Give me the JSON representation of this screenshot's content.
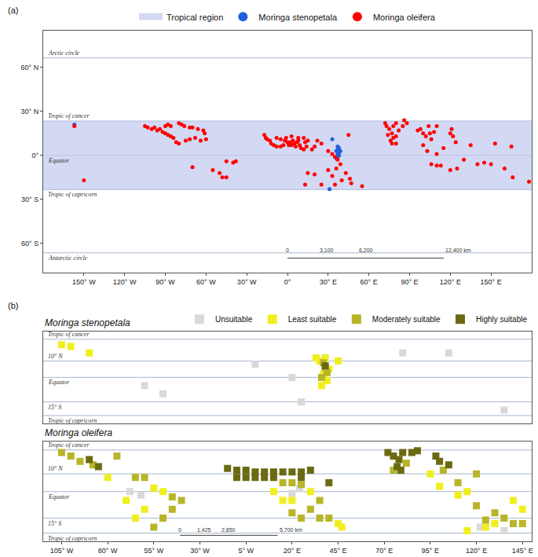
{
  "chart_data": [
    {
      "panel": "(a)",
      "type": "scatter",
      "marker": "circle",
      "xlim": [
        -180,
        180
      ],
      "ylim": [
        -80,
        85
      ],
      "xticks": [
        {
          "value": -150,
          "label": "150° W"
        },
        {
          "value": -120,
          "label": "120° W"
        },
        {
          "value": -90,
          "label": "90° W"
        },
        {
          "value": -60,
          "label": "60° W"
        },
        {
          "value": -30,
          "label": "30° W"
        },
        {
          "value": 0,
          "label": "0°"
        },
        {
          "value": 30,
          "label": "30° E"
        },
        {
          "value": 60,
          "label": "60° E"
        },
        {
          "value": 90,
          "label": "90° E"
        },
        {
          "value": 120,
          "label": "120° E"
        },
        {
          "value": 150,
          "label": "150° E"
        }
      ],
      "yticks": [
        {
          "value": 60,
          "label": "60° N"
        },
        {
          "value": 30,
          "label": "30° N"
        },
        {
          "value": 0,
          "label": "0°"
        },
        {
          "value": -30,
          "label": "30° S"
        },
        {
          "value": -60,
          "label": "60° S"
        }
      ],
      "legend": "top",
      "region": {
        "name": "Tropical region",
        "color": "#c5cbf0",
        "ylim": [
          -23.4,
          23.4
        ]
      },
      "lines": [
        {
          "label": "Arctic circle",
          "value": 66.5
        },
        {
          "label": "Tropic of cancer",
          "value": 23.4
        },
        {
          "label": "Equator",
          "value": 0
        },
        {
          "label": "Tropic of capricorn",
          "value": -23.4
        },
        {
          "label": "Antarctic circle",
          "value": -66.5
        }
      ],
      "scale_bar": [
        "0",
        "3,100",
        "6,200",
        "12,400 km"
      ],
      "series": [
        {
          "name": "Moringa stenopetala",
          "color": "#1f5fe0",
          "x": [
            37,
            38,
            37,
            38,
            37,
            37,
            36,
            38,
            39,
            36,
            33,
            31,
            -157
          ],
          "y": [
            6,
            5,
            4,
            2,
            1,
            -1,
            -2,
            0,
            3,
            3,
            11,
            -23,
            21
          ]
        },
        {
          "name": "Moringa oleifera",
          "color": "#ff0000",
          "x": [
            -105,
            -103,
            -100,
            -98,
            -96,
            -94,
            -92,
            -90,
            -88,
            -86,
            -84,
            -90,
            -88,
            -86,
            -80,
            -78,
            -76,
            -72,
            -70,
            -66,
            -62,
            -61,
            -68,
            -72,
            -75,
            -80,
            -82,
            -64,
            -60,
            -157,
            -150,
            -45,
            -40,
            -38,
            -70,
            -55,
            -50,
            -48,
            -45,
            -17,
            -16,
            -15,
            -13,
            -12,
            -10,
            -8,
            -5,
            -3,
            -2,
            0,
            1,
            2,
            3,
            4,
            5,
            6,
            7,
            8,
            9,
            10,
            12,
            13,
            15,
            14,
            18,
            20,
            22,
            25,
            -1,
            3,
            8,
            12,
            -5,
            -8,
            30,
            33,
            35,
            37,
            39,
            36,
            33,
            30,
            20,
            15,
            25,
            13,
            35,
            40,
            46,
            47,
            55,
            43,
            45,
            73,
            75,
            77,
            78,
            76,
            80,
            78,
            80,
            85,
            72,
            74,
            77,
            80,
            82,
            88,
            86,
            96,
            98,
            100,
            102,
            105,
            106,
            104,
            108,
            110,
            100,
            103,
            110,
            115,
            120,
            122,
            124,
            121,
            113,
            110,
            106,
            120,
            125,
            130,
            140,
            145,
            150,
            160,
            166,
            178,
            153,
            165,
            135
          ],
          "y": [
            20,
            19,
            18,
            19,
            17,
            18,
            16,
            15,
            14,
            13,
            12,
            20,
            21,
            20,
            22,
            21,
            20,
            19,
            19,
            18,
            17,
            15,
            12,
            11,
            10,
            8,
            9,
            10,
            11,
            20,
            -17,
            -4,
            -5,
            -4,
            -8,
            -10,
            -12,
            -15,
            -15,
            14,
            12,
            11,
            10,
            8,
            7,
            6,
            6,
            7,
            10,
            9,
            7,
            9,
            7,
            10,
            8,
            6,
            9,
            10,
            7,
            5,
            4,
            9,
            10,
            6,
            4,
            6,
            10,
            8,
            12,
            13,
            12,
            12,
            11,
            12,
            3,
            1,
            -1,
            -3,
            -6,
            -9,
            -14,
            -10,
            -13,
            -12,
            -20,
            -20,
            -20,
            -17,
            -16,
            -19,
            -21,
            -12,
            14,
            20,
            18,
            15,
            12,
            10,
            13,
            20,
            22,
            20,
            22,
            14,
            8,
            8,
            17,
            22,
            24,
            17,
            18,
            15,
            13,
            15,
            11,
            20,
            16,
            20,
            7,
            3,
            1,
            5,
            15,
            13,
            9,
            18,
            -7,
            -7,
            -6,
            -10,
            -9,
            -3,
            -6,
            -5,
            -6,
            -9,
            -15,
            -18,
            8,
            6,
            7
          ]
        }
      ]
    },
    {
      "panel": "(b)",
      "title": "Moringa stenopetala",
      "type": "scatter",
      "marker": "square",
      "xlim": [
        -115,
        150
      ],
      "ylim": [
        -28,
        28
      ],
      "tick_labels": false,
      "legend": "top right",
      "lines": [
        {
          "label": "Tropic of cancer",
          "value": 23.4
        },
        {
          "label": "10° N",
          "value": 10
        },
        {
          "label": "Equator",
          "value": 0
        },
        {
          "label": "15° S",
          "value": -15
        },
        {
          "label": "Tropic of capricorn",
          "value": -23.4
        }
      ],
      "series": [
        {
          "name": "Unsuitable",
          "color": "#d9d9d9",
          "x": [
            -60,
            -50,
            0,
            20,
            25,
            80,
            105,
            135
          ],
          "y": [
            -5,
            -10,
            8,
            0,
            -15,
            15,
            15,
            -20
          ]
        },
        {
          "name": "Least suitable",
          "color": "#f0ef1e",
          "x": [
            -105,
            -100,
            -90,
            35,
            40,
            37,
            39,
            36,
            33,
            45,
            38
          ],
          "y": [
            20,
            19,
            15,
            10,
            5,
            2,
            -2,
            -5,
            12,
            10,
            12
          ]
        },
        {
          "name": "Moderately suitable",
          "color": "#b8b52a",
          "x": [
            38,
            37,
            39,
            36
          ],
          "y": [
            6,
            9,
            3,
            0
          ]
        },
        {
          "name": "Highly suitable",
          "color": "#6b6a12",
          "x": [
            38
          ],
          "y": [
            7
          ]
        }
      ]
    },
    {
      "title": "Moringa oleifera",
      "type": "scatter",
      "marker": "square",
      "xlim": [
        -115,
        150
      ],
      "ylim": [
        -28,
        28
      ],
      "xticks": [
        {
          "value": -105,
          "label": "105° W"
        },
        {
          "value": -80,
          "label": "80° W"
        },
        {
          "value": -55,
          "label": "55° W"
        },
        {
          "value": -30,
          "label": "30° W"
        },
        {
          "value": -5,
          "label": "5° W"
        },
        {
          "value": 20,
          "label": "20° E"
        },
        {
          "value": 45,
          "label": "45° E"
        },
        {
          "value": 70,
          "label": "70° E"
        },
        {
          "value": 95,
          "label": "95° E"
        },
        {
          "value": 120,
          "label": "120° E"
        },
        {
          "value": 145,
          "label": "145° E"
        }
      ],
      "lines": [
        {
          "label": "Tropic of cancer",
          "value": 23.4
        },
        {
          "label": "10° N",
          "value": 10
        },
        {
          "label": "Equator",
          "value": 0
        },
        {
          "label": "15° S",
          "value": -15
        },
        {
          "label": "Tropic of capricorn",
          "value": -23.4
        }
      ],
      "scale_bar": [
        "0",
        "1,425",
        "2,850",
        "5,700 km"
      ],
      "series": [
        {
          "name": "Unsuitable",
          "color": "#d9d9d9",
          "x": [
            -62,
            -68,
            20,
            24,
            135,
            122
          ],
          "y": [
            -2,
            0,
            -1,
            2,
            -22,
            -20
          ]
        },
        {
          "name": "Least suitable",
          "color": "#f0ef1e",
          "x": [
            -80,
            -70,
            -60,
            -65,
            -50,
            -55,
            10,
            15,
            20,
            30,
            45,
            47,
            110,
            115,
            140,
            125,
            130,
            115,
            100,
            95,
            145
          ],
          "y": [
            8,
            -5,
            -10,
            -15,
            0,
            2,
            0,
            -5,
            -5,
            0,
            -18,
            -20,
            -2,
            0,
            -5,
            -20,
            -18,
            -22,
            3,
            10,
            -10
          ]
        },
        {
          "name": "Moderately suitable",
          "color": "#b8b52a",
          "x": [
            -100,
            -95,
            -105,
            -88,
            -75,
            -40,
            -45,
            -60,
            -65,
            -50,
            -45,
            -55,
            20,
            15,
            25,
            35,
            30,
            25,
            20,
            35,
            40,
            82,
            75,
            102,
            110,
            120,
            120,
            130,
            125,
            135,
            145,
            140
          ],
          "y": [
            20,
            17,
            22,
            15,
            20,
            -5,
            -3,
            8,
            8,
            -15,
            -10,
            -20,
            5,
            5,
            4,
            -5,
            -10,
            -15,
            -12,
            -15,
            -15,
            16,
            12,
            12,
            5,
            10,
            -8,
            -12,
            -16,
            -15,
            -18,
            -18
          ]
        },
        {
          "name": "Highly suitable",
          "color": "#6b6a12",
          "x": [
            -15,
            -10,
            -5,
            0,
            5,
            10,
            15,
            20,
            25,
            30,
            -10,
            -5,
            0,
            5,
            10,
            25,
            75,
            78,
            80,
            85,
            77,
            79,
            72,
            88,
            100,
            105,
            98,
            -90,
            -85,
            40
          ],
          "y": [
            13,
            12,
            12,
            11,
            11,
            11,
            11,
            11,
            11,
            12,
            8,
            8,
            8,
            8,
            8,
            8,
            20,
            18,
            22,
            22,
            14,
            12,
            22,
            23,
            17,
            15,
            20,
            18,
            14,
            5
          ]
        }
      ]
    }
  ]
}
